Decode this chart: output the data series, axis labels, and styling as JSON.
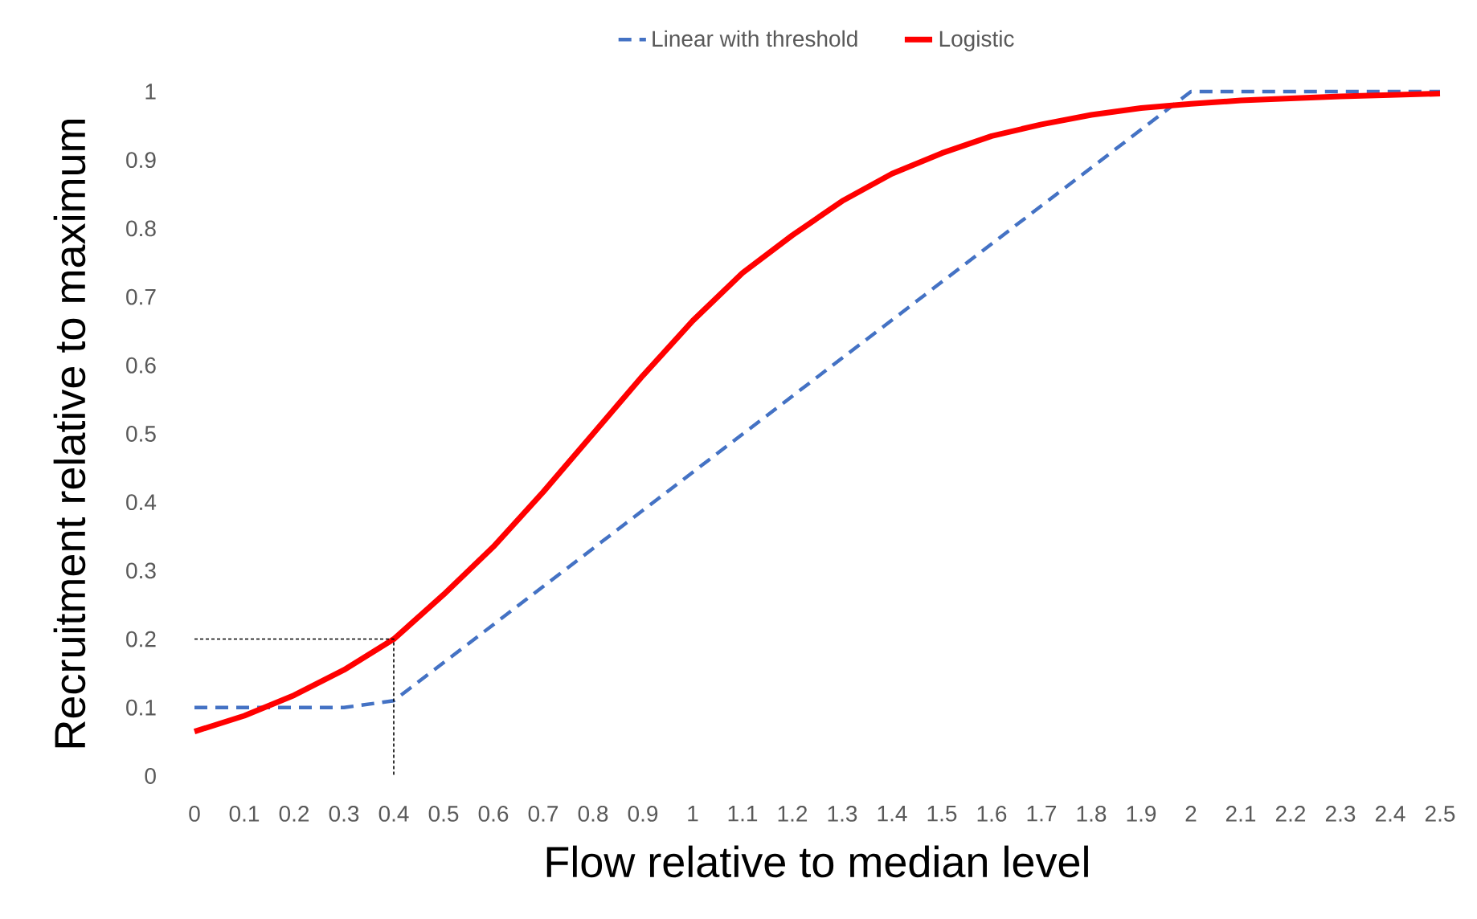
{
  "chart_data": {
    "type": "line",
    "xlabel": "Flow relative to median level",
    "ylabel": "Recruitment relative to maximum",
    "xlim": [
      0,
      2.5
    ],
    "ylim": [
      0,
      1
    ],
    "xticks": [
      0,
      0.1,
      0.2,
      0.3,
      0.4,
      0.5,
      0.6,
      0.7,
      0.8,
      0.9,
      1,
      1.1,
      1.2,
      1.3,
      1.4,
      1.5,
      1.6,
      1.7,
      1.8,
      1.9,
      2,
      2.1,
      2.2,
      2.3,
      2.4,
      2.5
    ],
    "yticks": [
      0,
      0.1,
      0.2,
      0.3,
      0.4,
      0.5,
      0.6,
      0.7,
      0.8,
      0.9,
      1
    ],
    "grid": false,
    "legend": "top",
    "series": [
      {
        "name": "Linear with threshold",
        "color": "#4472c4",
        "line_style": "dashed",
        "x": [
          0,
          0.3,
          0.4,
          2,
          2.5
        ],
        "values": [
          0.1,
          0.1,
          0.11,
          1,
          1
        ]
      },
      {
        "name": "Logistic",
        "color": "#ff0000",
        "line_style": "solid",
        "x": [
          0,
          0.1,
          0.2,
          0.3,
          0.4,
          0.5,
          0.6,
          0.7,
          0.8,
          0.9,
          1,
          1.1,
          1.2,
          1.3,
          1.4,
          1.5,
          1.6,
          1.7,
          1.8,
          1.9,
          2,
          2.1,
          2.2,
          2.3,
          2.4,
          2.5
        ],
        "values": [
          0.065,
          0.088,
          0.118,
          0.155,
          0.2,
          0.265,
          0.335,
          0.415,
          0.5,
          0.585,
          0.665,
          0.735,
          0.79,
          0.84,
          0.88,
          0.91,
          0.935,
          0.952,
          0.966,
          0.976,
          0.982,
          0.987,
          0.99,
          0.993,
          0.995,
          0.997
        ]
      },
      {
        "color": "#000000",
        "line_style": "dotted",
        "x": [
          0,
          0.4,
          0.4
        ],
        "values": [
          0.2,
          0.2,
          0
        ]
      }
    ]
  }
}
